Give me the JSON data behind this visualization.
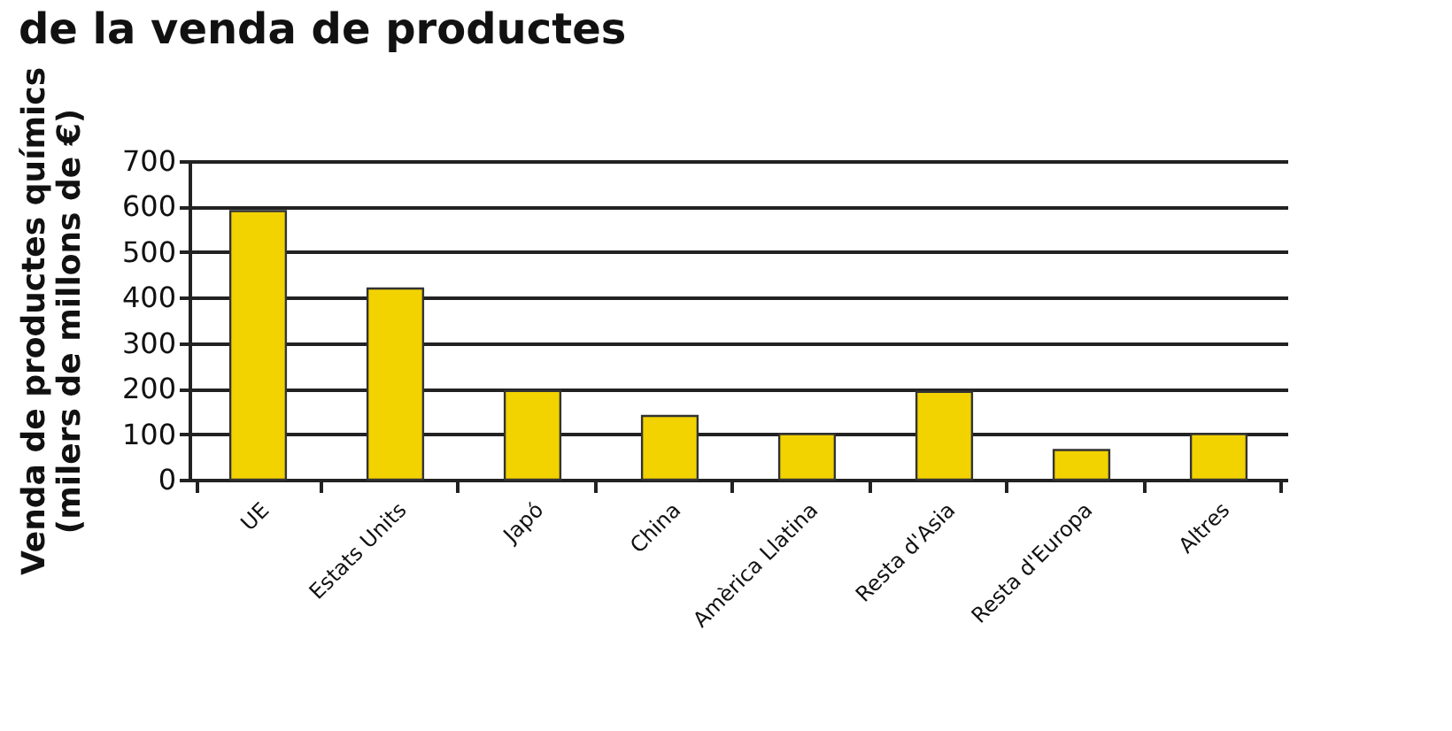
{
  "chart_data": {
    "type": "bar",
    "title": "de la venda de productes",
    "ylabel": "Venda de productes químics\n(milers de millons de €)",
    "categories": [
      "UE",
      "Estats Units",
      "Japó",
      "China",
      "Amèrica Llatina",
      "Resta d'Asia",
      "Resta d'Europa",
      "Altres"
    ],
    "values": [
      590,
      420,
      195,
      140,
      100,
      193,
      65,
      100
    ],
    "color": "#f2d300",
    "ylim": [
      0,
      700
    ],
    "yticks": [
      0,
      100,
      200,
      300,
      400,
      500,
      600,
      700
    ],
    "grid": "y"
  }
}
